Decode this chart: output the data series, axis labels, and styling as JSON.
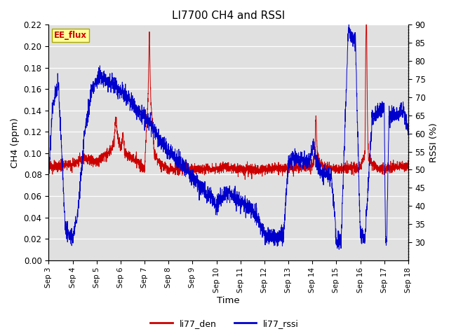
{
  "title": "LI7700 CH4 and RSSI",
  "xlabel": "Time",
  "ylabel_left": "CH4 (ppm)",
  "ylabel_right": "RSSI (%)",
  "site_label": "EE_flux",
  "ylim_left": [
    0.0,
    0.22
  ],
  "ylim_right": [
    25,
    90
  ],
  "yticks_left": [
    0.0,
    0.02,
    0.04,
    0.06,
    0.08,
    0.1,
    0.12,
    0.14,
    0.16,
    0.18,
    0.2,
    0.22
  ],
  "yticks_right": [
    30,
    35,
    40,
    45,
    50,
    55,
    60,
    65,
    70,
    75,
    80,
    85,
    90
  ],
  "color_red": "#cc0000",
  "color_blue": "#0000cc",
  "bg_color": "#e0e0e0",
  "legend_labels": [
    "li77_den",
    "li77_rssi"
  ],
  "xtick_labels": [
    "Sep 3",
    "Sep 4",
    "Sep 5",
    "Sep 6",
    "Sep 7",
    "Sep 8",
    "Sep 9",
    "Sep 10",
    "Sep 11",
    "Sep 12",
    "Sep 13",
    "Sep 14",
    "Sep 15",
    "Sep 16",
    "Sep 17",
    "Sep 18"
  ],
  "rssi_key_x": [
    0,
    0.15,
    0.4,
    0.7,
    1.0,
    1.2,
    1.5,
    1.8,
    2.1,
    2.5,
    2.8,
    3.0,
    3.2,
    3.5,
    3.8,
    4.0,
    4.3,
    4.6,
    5.0,
    5.5,
    5.8,
    6.0,
    6.2,
    6.5,
    6.8,
    7.0,
    7.2,
    7.5,
    7.8,
    8.0,
    8.3,
    8.6,
    9.0,
    9.2,
    9.5,
    9.8,
    10.0,
    10.2,
    10.5,
    10.8,
    11.0,
    11.05,
    11.1,
    11.2,
    11.3,
    11.5,
    11.8,
    12.0,
    12.05,
    12.1,
    12.2,
    12.5,
    12.55,
    12.6,
    12.8,
    13.0,
    13.2,
    13.5,
    13.8,
    14.0,
    14.05,
    14.1,
    14.2,
    14.5,
    14.8,
    15.0
  ],
  "rssi_key_y": [
    47,
    67,
    74,
    33,
    31,
    37,
    60,
    72,
    76,
    74,
    73,
    72,
    70,
    68,
    66,
    64,
    62,
    58,
    55,
    52,
    50,
    48,
    46,
    44,
    42,
    40,
    42,
    44,
    42,
    41,
    40,
    38,
    32,
    31,
    31,
    32,
    52,
    53,
    53,
    52,
    55,
    58,
    54,
    52,
    50,
    49,
    48,
    31,
    29,
    31,
    30,
    89,
    88,
    87,
    85,
    32,
    31,
    65,
    66,
    68,
    31,
    30,
    65,
    65,
    67,
    60
  ],
  "ch4_key_x": [
    0,
    0.5,
    1.0,
    1.5,
    2.0,
    2.5,
    2.7,
    2.9,
    3.0,
    3.2,
    3.5,
    3.8,
    4.0,
    4.15,
    4.2,
    4.25,
    4.4,
    4.6,
    5.0,
    5.5,
    6.0,
    6.5,
    7.0,
    7.5,
    8.0,
    8.5,
    9.0,
    9.5,
    10.0,
    10.5,
    10.8,
    11.0,
    11.1,
    11.15,
    11.2,
    11.3,
    11.5,
    11.8,
    12.0,
    12.5,
    13.0,
    13.2,
    13.25,
    13.3,
    13.5,
    13.8,
    14.0,
    14.5,
    15.0
  ],
  "ch4_key_y": [
    0.087,
    0.088,
    0.09,
    0.095,
    0.092,
    0.1,
    0.108,
    0.112,
    0.105,
    0.1,
    0.095,
    0.09,
    0.085,
    0.155,
    0.215,
    0.155,
    0.1,
    0.092,
    0.085,
    0.085,
    0.085,
    0.085,
    0.085,
    0.087,
    0.085,
    0.085,
    0.085,
    0.086,
    0.086,
    0.086,
    0.087,
    0.088,
    0.1,
    0.11,
    0.1,
    0.09,
    0.087,
    0.086,
    0.085,
    0.086,
    0.086,
    0.1,
    0.16,
    0.1,
    0.088,
    0.086,
    0.085,
    0.088,
    0.088
  ]
}
